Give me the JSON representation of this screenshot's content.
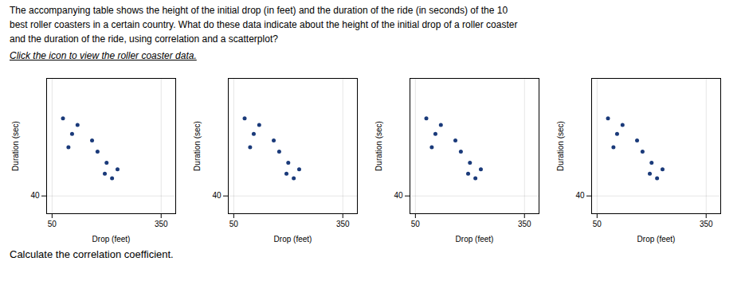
{
  "annotations": [
    "The accompanying table shows the height of the initial drop (in feet) and the duration of the ride (in seconds) of the 10",
    "best roller coasters in a certain country. What do these data indicate about the height of the initial drop of a roller coaster",
    "and the duration of the ride, using correlation and a scatterplot?",
    "Click the icon to view the roller coaster data.",
    "Calculate the correlation coefficient."
  ],
  "chart_data": [
    {
      "type": "scatter",
      "x": [
        80,
        120,
        105,
        95,
        160,
        175,
        200,
        230,
        195,
        215
      ],
      "values": [
        75,
        72,
        68,
        62,
        65,
        60,
        55,
        52,
        50,
        48
      ],
      "color": "#1a3a7a",
      "xlabel": "Drop (feet)",
      "ylabel": "Duration (sec)",
      "xlim": [
        35,
        390
      ],
      "ylim": [
        32,
        93
      ],
      "xticks": [
        50,
        350
      ],
      "yticks": [
        40
      ],
      "grid": true
    },
    {
      "type": "scatter",
      "x": [
        80,
        120,
        105,
        95,
        160,
        175,
        200,
        230,
        195,
        215
      ],
      "values": [
        75,
        72,
        68,
        62,
        65,
        60,
        55,
        52,
        50,
        48
      ],
      "color": "#1a3a7a",
      "xlabel": "Drop (feet)",
      "ylabel": "Duration (sec)",
      "xlim": [
        35,
        390
      ],
      "ylim": [
        32,
        93
      ],
      "xticks": [
        50,
        350
      ],
      "yticks": [
        40
      ],
      "grid": true
    },
    {
      "type": "scatter",
      "x": [
        80,
        120,
        105,
        95,
        160,
        175,
        200,
        230,
        195,
        215
      ],
      "values": [
        75,
        72,
        68,
        62,
        65,
        60,
        55,
        52,
        50,
        48
      ],
      "color": "#1a3a7a",
      "xlabel": "Drop (feet)",
      "ylabel": "Duration (sec)",
      "xlim": [
        35,
        390
      ],
      "ylim": [
        32,
        93
      ],
      "xticks": [
        50,
        350
      ],
      "yticks": [
        40
      ],
      "grid": true
    },
    {
      "type": "scatter",
      "x": [
        80,
        120,
        105,
        95,
        160,
        175,
        200,
        230,
        195,
        215
      ],
      "values": [
        75,
        72,
        68,
        62,
        65,
        60,
        55,
        52,
        50,
        48
      ],
      "color": "#1a3a7a",
      "xlabel": "Drop (feet)",
      "ylabel": "Duration (sec)",
      "xlim": [
        35,
        390
      ],
      "ylim": [
        32,
        93
      ],
      "xticks": [
        50,
        350
      ],
      "yticks": [
        40
      ],
      "grid": true
    }
  ]
}
